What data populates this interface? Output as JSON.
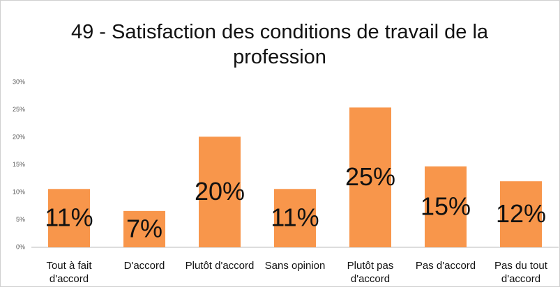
{
  "chart_data": {
    "type": "bar",
    "title": "49 - Satisfaction des conditions de travail de la profession",
    "categories": [
      "Tout à fait d'accord",
      "D'accord",
      "Plutôt d'accord",
      "Sans opinion",
      "Plutôt pas d'accord",
      "Pas d'accord",
      "Pas du tout d'accord"
    ],
    "values": [
      10.6,
      6.6,
      20.1,
      10.6,
      25.4,
      14.7,
      12.0
    ],
    "value_labels": [
      "11%",
      "7%",
      "20%",
      "11%",
      "25%",
      "15%",
      "12%"
    ],
    "color": "#f8964b",
    "ylim": [
      0,
      30
    ],
    "yticks": [
      {
        "value": 0,
        "label": "0%"
      },
      {
        "value": 5,
        "label": "5%"
      },
      {
        "value": 10,
        "label": "10%"
      },
      {
        "value": 15,
        "label": "15%"
      },
      {
        "value": 20,
        "label": "20%"
      },
      {
        "value": 25,
        "label": "25%"
      },
      {
        "value": 30,
        "label": "30%"
      }
    ],
    "grid": false
  }
}
